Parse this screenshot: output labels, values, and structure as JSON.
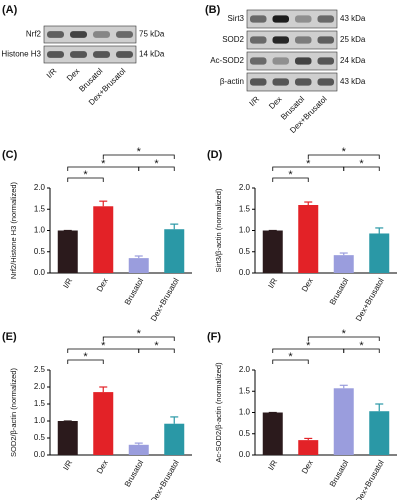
{
  "blots": [
    {
      "panel": "(A)",
      "rows": [
        {
          "name": "Nrf2",
          "kda": "75 kDa"
        },
        {
          "name": "Histone H3",
          "kda": "14 kDa"
        }
      ],
      "lanes": [
        "I/R",
        "Dex",
        "Brusatol",
        "Dex+Brusatol"
      ]
    },
    {
      "panel": "(B)",
      "rows": [
        {
          "name": "Sirt3",
          "kda": "43 kDa"
        },
        {
          "name": "SOD2",
          "kda": "25 kDa"
        },
        {
          "name": "Ac-SOD2",
          "kda": "24 kDa"
        },
        {
          "name": "β-actin",
          "kda": "43 kDa"
        }
      ],
      "lanes": [
        "I/R",
        "Dex",
        "Brusatol",
        "Dex+Brusatol"
      ]
    }
  ],
  "chart_data": [
    {
      "type": "bar",
      "panel": "(C)",
      "y_label": "Nrf2/Histone H3 (normalized)",
      "categories": [
        "I/R",
        "Dex",
        "Brusatol",
        "Dex+Brusatol"
      ],
      "values": [
        1.0,
        1.57,
        0.35,
        1.03
      ],
      "errors": [
        0,
        0.12,
        0.05,
        0.12
      ],
      "colors": [
        "#2b1a1c",
        "#e32227",
        "#9a9ddd",
        "#2a98a6"
      ],
      "ylim": [
        0,
        2
      ],
      "yticks": [
        {
          "value": 0,
          "label": "0.0"
        },
        0.5,
        {
          "value": 1,
          "label": "1.0"
        },
        1.5,
        {
          "value": 2,
          "label": "2.0"
        }
      ],
      "annotations": [
        "*",
        "*",
        "*",
        "*"
      ]
    },
    {
      "type": "bar",
      "panel": "(D)",
      "y_label": "Sirt3/β-actin (normalized)",
      "categories": [
        "I/R",
        "Dex",
        "Brusatol",
        "Dex+Brusatol"
      ],
      "values": [
        1.0,
        1.6,
        0.42,
        0.93
      ],
      "errors": [
        0,
        0.07,
        0.05,
        0.13
      ],
      "colors": [
        "#2b1a1c",
        "#e32227",
        "#9a9ddd",
        "#2a98a6"
      ],
      "ylim": [
        0,
        2
      ],
      "yticks": [
        {
          "value": 0,
          "label": "0.0"
        },
        0.5,
        {
          "value": 1,
          "label": "1.0"
        },
        1.5,
        {
          "value": 2,
          "label": "2.0"
        }
      ],
      "annotations": [
        "*",
        "*",
        "*",
        "*"
      ]
    },
    {
      "type": "bar",
      "panel": "(E)",
      "y_label": "SOD2/β-actin (normalized)",
      "categories": [
        "I/R",
        "Dex",
        "Brusatol",
        "Dex+Brusatol"
      ],
      "values": [
        1.0,
        1.85,
        0.3,
        0.92
      ],
      "errors": [
        0,
        0.15,
        0.05,
        0.2
      ],
      "colors": [
        "#2b1a1c",
        "#e32227",
        "#9a9ddd",
        "#2a98a6"
      ],
      "ylim": [
        0,
        2.5
      ],
      "yticks": [
        {
          "value": 0,
          "label": "0.0"
        },
        0.5,
        {
          "value": 1,
          "label": "1.0"
        },
        1.5,
        {
          "value": 2,
          "label": "2.0"
        },
        2.5
      ],
      "annotations": [
        "*",
        "*",
        "*",
        "*"
      ]
    },
    {
      "type": "bar",
      "panel": "(F)",
      "y_label": "Ac-SOD2/β-actin (normalized)",
      "categories": [
        "I/R",
        "Dex",
        "Brusatol",
        "Dex+Brusatol"
      ],
      "values": [
        1.0,
        0.35,
        1.57,
        1.03
      ],
      "errors": [
        0,
        0.04,
        0.07,
        0.17
      ],
      "colors": [
        "#2b1a1c",
        "#e32227",
        "#9a9ddd",
        "#2a98a6"
      ],
      "ylim": [
        0,
        2
      ],
      "yticks": [
        {
          "value": 0,
          "label": "0.0"
        },
        0.5,
        {
          "value": 1,
          "label": "1.0"
        },
        1.5,
        {
          "value": 2,
          "label": "2.0"
        }
      ],
      "annotations": [
        "*",
        "*",
        "*",
        "*"
      ]
    }
  ]
}
